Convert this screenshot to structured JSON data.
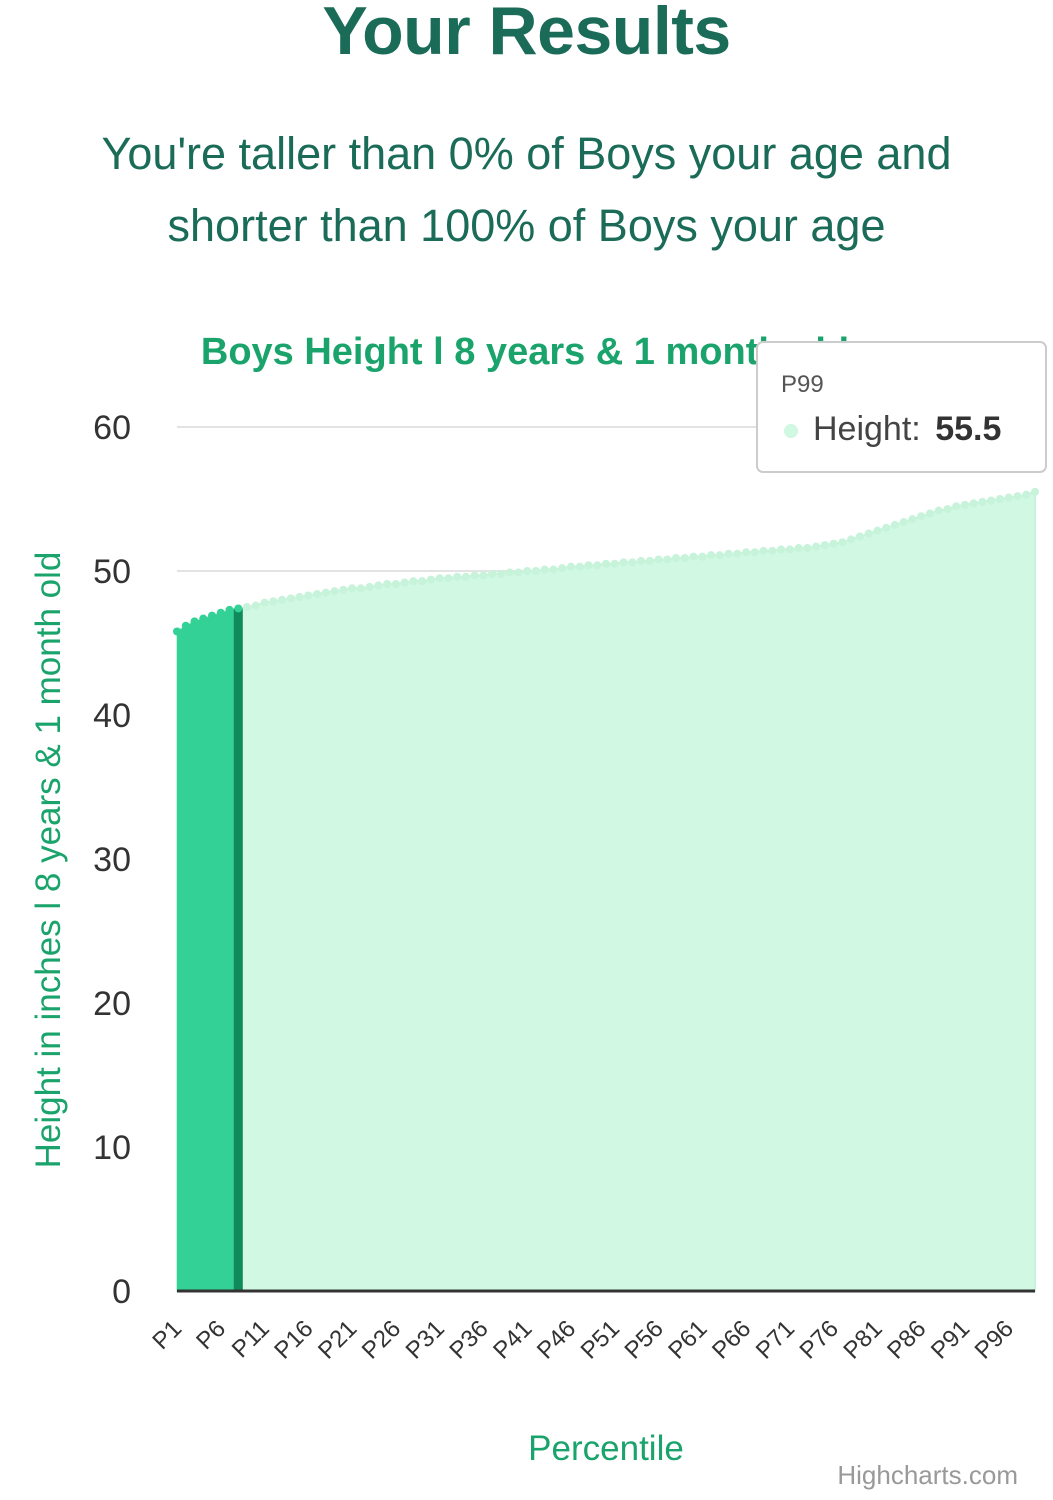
{
  "header": {
    "title": "Your Results",
    "summary": "You're taller than 0% of Boys your age and shorter than 100% of Boys your age"
  },
  "chart_data": {
    "type": "area",
    "title": "Boys Height l 8 years & 1 month old",
    "xlabel": "Percentile",
    "ylabel": "Height in inches l 8 years & 1 month old",
    "ylim": [
      0,
      60
    ],
    "yticks": [
      0,
      10,
      20,
      30,
      40,
      50,
      60
    ],
    "grid": true,
    "x_tick_labels": [
      "P1",
      "P6",
      "P11",
      "P16",
      "P21",
      "P26",
      "P31",
      "P36",
      "P41",
      "P46",
      "P51",
      "P56",
      "P61",
      "P66",
      "P71",
      "P76",
      "P81",
      "P86",
      "P91",
      "P96"
    ],
    "series": [
      {
        "name": "Height",
        "color": "#d0f8e2",
        "x": [
          "P1",
          "P2",
          "P3",
          "P4",
          "P5",
          "P6",
          "P7",
          "P8",
          "P9",
          "P10",
          "P11",
          "P12",
          "P13",
          "P14",
          "P15",
          "P16",
          "P17",
          "P18",
          "P19",
          "P20",
          "P21",
          "P22",
          "P23",
          "P24",
          "P25",
          "P26",
          "P27",
          "P28",
          "P29",
          "P30",
          "P31",
          "P32",
          "P33",
          "P34",
          "P35",
          "P36",
          "P37",
          "P38",
          "P39",
          "P40",
          "P41",
          "P42",
          "P43",
          "P44",
          "P45",
          "P46",
          "P47",
          "P48",
          "P49",
          "P50",
          "P51",
          "P52",
          "P53",
          "P54",
          "P55",
          "P56",
          "P57",
          "P58",
          "P59",
          "P60",
          "P61",
          "P62",
          "P63",
          "P64",
          "P65",
          "P66",
          "P67",
          "P68",
          "P69",
          "P70",
          "P71",
          "P72",
          "P73",
          "P74",
          "P75",
          "P76",
          "P77",
          "P78",
          "P79",
          "P80",
          "P81",
          "P82",
          "P83",
          "P84",
          "P85",
          "P86",
          "P87",
          "P88",
          "P89",
          "P90",
          "P91",
          "P92",
          "P93",
          "P94",
          "P95",
          "P96",
          "P97",
          "P98",
          "P99"
        ],
        "values": [
          45.8,
          46.2,
          46.5,
          46.7,
          46.9,
          47.1,
          47.3,
          47.4,
          47.5,
          47.6,
          47.8,
          47.9,
          48.0,
          48.1,
          48.2,
          48.3,
          48.4,
          48.5,
          48.6,
          48.7,
          48.8,
          48.8,
          48.9,
          49.0,
          49.1,
          49.1,
          49.2,
          49.3,
          49.3,
          49.4,
          49.5,
          49.5,
          49.6,
          49.6,
          49.7,
          49.7,
          49.8,
          49.8,
          49.9,
          49.9,
          50.0,
          50.0,
          50.1,
          50.1,
          50.2,
          50.3,
          50.3,
          50.4,
          50.4,
          50.5,
          50.5,
          50.6,
          50.6,
          50.7,
          50.7,
          50.8,
          50.8,
          50.9,
          50.9,
          51.0,
          51.0,
          51.1,
          51.1,
          51.2,
          51.2,
          51.3,
          51.3,
          51.4,
          51.4,
          51.5,
          51.5,
          51.6,
          51.6,
          51.7,
          51.8,
          51.9,
          52.0,
          52.2,
          52.4,
          52.6,
          52.8,
          53.0,
          53.2,
          53.4,
          53.6,
          53.8,
          54.0,
          54.2,
          54.3,
          54.5,
          54.6,
          54.7,
          54.8,
          54.9,
          55.0,
          55.1,
          55.2,
          55.3,
          55.5
        ]
      }
    ],
    "highlight": {
      "range": [
        "P1",
        "P8"
      ],
      "color": "#34d196",
      "marker_color": "#0f8a5a"
    },
    "tooltip": {
      "category": "P99",
      "series_label": "Height:",
      "value": "55.5",
      "dot_color": "#d0f8e2"
    },
    "credits": "Highcharts.com"
  }
}
